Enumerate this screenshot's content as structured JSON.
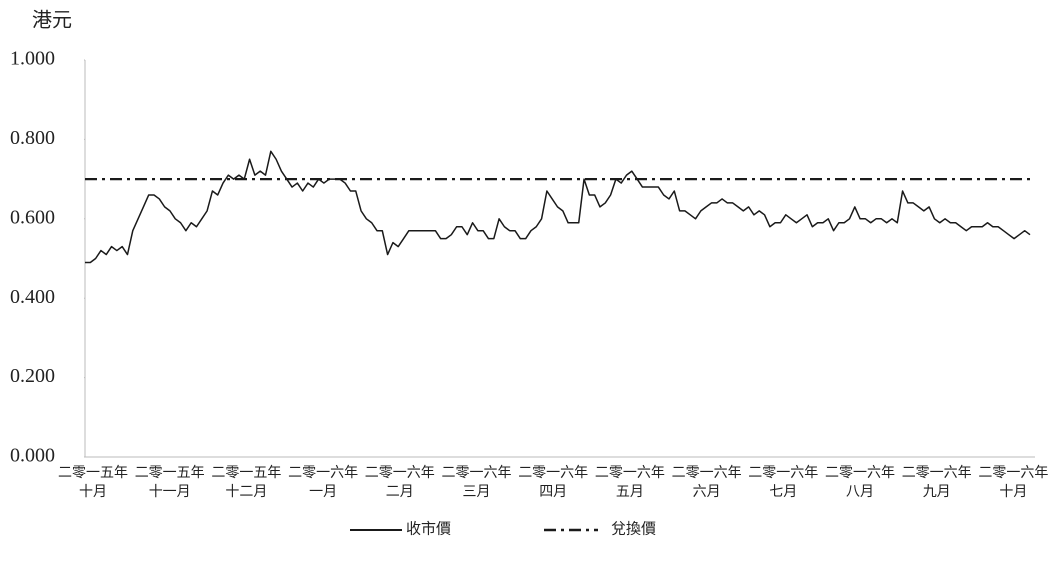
{
  "chart_data": {
    "type": "line",
    "y_axis_title": "港元",
    "x_tick_labels": [
      "二零一五年\n十月",
      "二零一五年\n十一月",
      "二零一五年\n十二月",
      "二零一六年\n一月",
      "二零一六年\n二月",
      "二零一六年\n三月",
      "二零一六年\n四月",
      "二零一六年\n五月",
      "二零一六年\n六月",
      "二零一六年\n七月",
      "二零一六年\n八月",
      "二零一六年\n九月",
      "二零一六年\n十月"
    ],
    "series": [
      {
        "name": "收市價",
        "color": "#1a1a1a",
        "values": [
          0.49,
          0.49,
          0.5,
          0.52,
          0.51,
          0.53,
          0.52,
          0.53,
          0.51,
          0.57,
          0.6,
          0.63,
          0.66,
          0.66,
          0.65,
          0.63,
          0.62,
          0.6,
          0.59,
          0.57,
          0.59,
          0.58,
          0.6,
          0.62,
          0.67,
          0.66,
          0.69,
          0.71,
          0.7,
          0.71,
          0.7,
          0.75,
          0.71,
          0.72,
          0.71,
          0.77,
          0.75,
          0.72,
          0.7,
          0.68,
          0.69,
          0.67,
          0.69,
          0.68,
          0.7,
          0.69,
          0.7,
          0.7,
          0.7,
          0.69,
          0.67,
          0.67,
          0.62,
          0.6,
          0.59,
          0.57,
          0.57,
          0.51,
          0.54,
          0.53,
          0.55,
          0.57,
          0.57,
          0.57,
          0.57,
          0.57,
          0.57,
          0.55,
          0.55,
          0.56,
          0.58,
          0.58,
          0.56,
          0.59,
          0.57,
          0.57,
          0.55,
          0.55,
          0.6,
          0.58,
          0.57,
          0.57,
          0.55,
          0.55,
          0.57,
          0.58,
          0.6,
          0.67,
          0.65,
          0.63,
          0.62,
          0.59,
          0.59,
          0.59,
          0.7,
          0.66,
          0.66,
          0.63,
          0.64,
          0.66,
          0.7,
          0.69,
          0.71,
          0.72,
          0.7,
          0.68,
          0.68,
          0.68,
          0.68,
          0.66,
          0.65,
          0.67,
          0.62,
          0.62,
          0.61,
          0.6,
          0.62,
          0.63,
          0.64,
          0.64,
          0.65,
          0.64,
          0.64,
          0.63,
          0.62,
          0.63,
          0.61,
          0.62,
          0.61,
          0.58,
          0.59,
          0.59,
          0.61,
          0.6,
          0.59,
          0.6,
          0.61,
          0.58,
          0.59,
          0.59,
          0.6,
          0.57,
          0.59,
          0.59,
          0.6,
          0.63,
          0.6,
          0.6,
          0.59,
          0.6,
          0.6,
          0.59,
          0.6,
          0.59,
          0.67,
          0.64,
          0.64,
          0.63,
          0.62,
          0.63,
          0.6,
          0.59,
          0.6,
          0.59,
          0.59,
          0.58,
          0.57,
          0.58,
          0.58,
          0.58,
          0.59,
          0.58,
          0.58,
          0.57,
          0.56,
          0.55,
          0.56,
          0.57,
          0.56
        ]
      }
    ],
    "reference_line": {
      "name": "兌換價",
      "value": 0.7,
      "color": "#1a1a1a",
      "style": "dash-dot"
    },
    "ylim": [
      0,
      1
    ],
    "yticks": [
      {
        "value": 0,
        "label": "0.000"
      },
      {
        "value": 0.2,
        "label": "0.200"
      },
      {
        "value": 0.4,
        "label": "0.400"
      },
      {
        "value": 0.6,
        "label": "0.600"
      },
      {
        "value": 0.8,
        "label": "0.800"
      },
      {
        "value": 1,
        "label": "1.000"
      }
    ],
    "grid": false,
    "legend": "bottom"
  }
}
